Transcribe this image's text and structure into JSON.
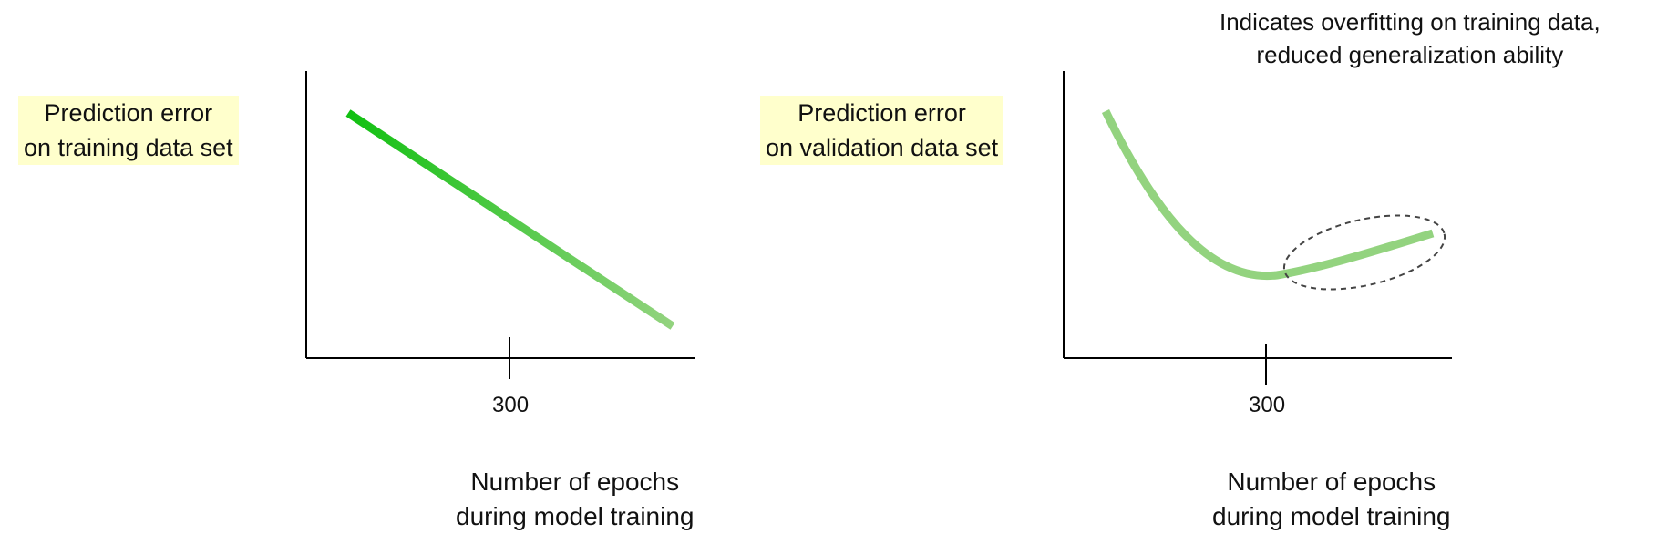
{
  "colors": {
    "highlight": "#ffffcc",
    "line_dark": "#11c011",
    "line_light": "#93d37f",
    "axis": "#000000",
    "ellipse": "#444444"
  },
  "panels": [
    {
      "id": "training",
      "ylabel_line1": "Prediction error",
      "ylabel_line2": "on training data set",
      "tick": "300",
      "xlabel_line1": "Number of epochs",
      "xlabel_line2": "during model training"
    },
    {
      "id": "validation",
      "ylabel_line1": "Prediction error",
      "ylabel_line2": "on validation data set",
      "tick": "300",
      "xlabel_line1": "Number of epochs",
      "xlabel_line2": "during model training",
      "annotation_line1": "Indicates overfitting on training data,",
      "annotation_line2": "reduced generalization ability"
    }
  ]
}
